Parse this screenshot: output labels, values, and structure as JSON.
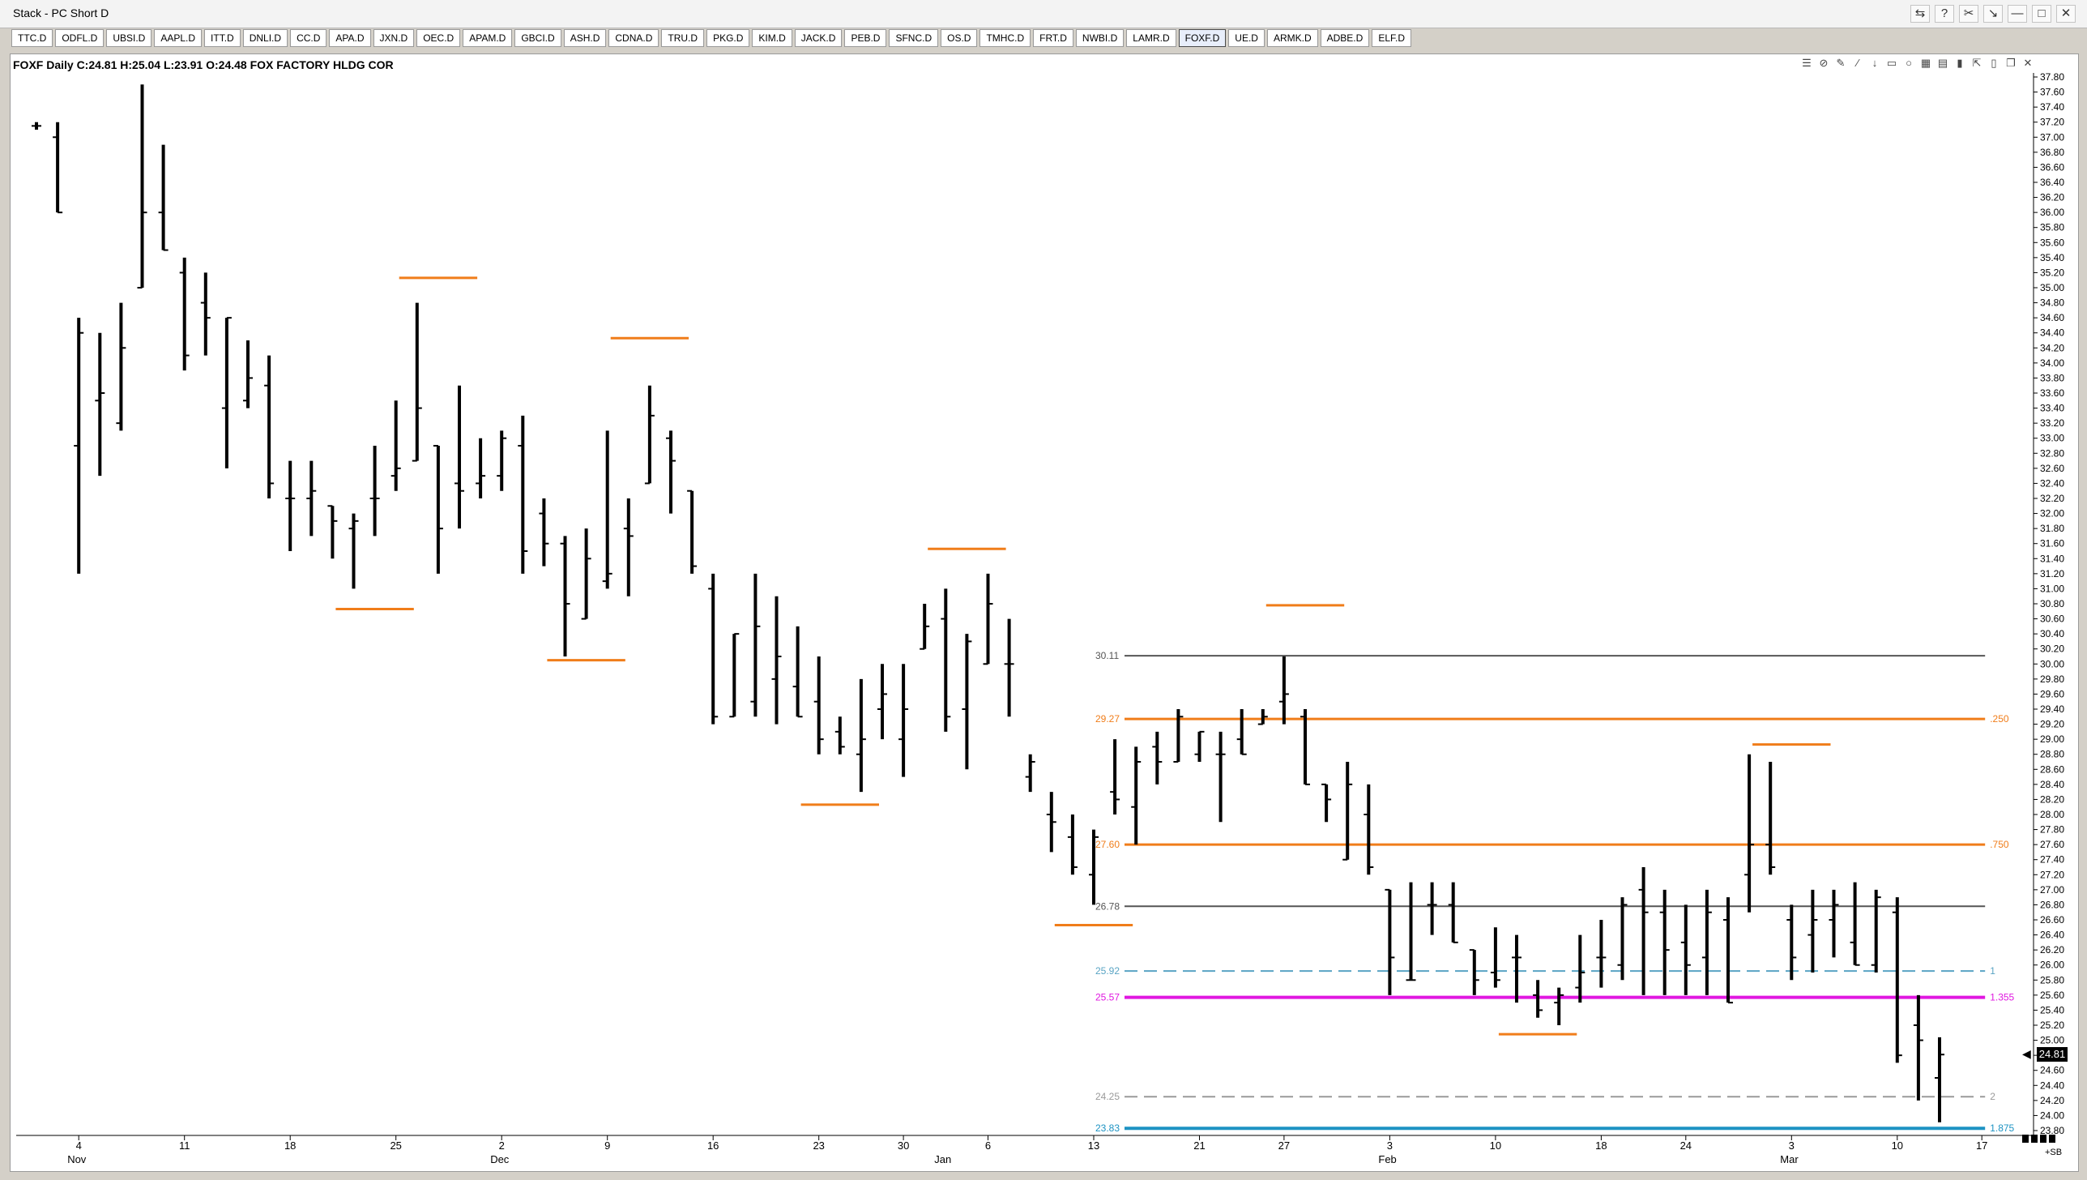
{
  "window": {
    "title": "Stack - PC Short D",
    "controls": [
      "⇆",
      "?",
      "✂",
      "↘",
      "—",
      "□",
      "✕"
    ]
  },
  "tabs": [
    "TTC.D",
    "ODFL.D",
    "UBSI.D",
    "AAPL.D",
    "ITT.D",
    "DNLI.D",
    "CC.D",
    "APA.D",
    "JXN.D",
    "OEC.D",
    "APAM.D",
    "GBCI.D",
    "ASH.D",
    "CDNA.D",
    "TRU.D",
    "PKG.D",
    "KIM.D",
    "JACK.D",
    "PEB.D",
    "SFNC.D",
    "OS.D",
    "TMHC.D",
    "FRT.D",
    "NWBI.D",
    "LAMR.D",
    "FOXF.D",
    "UE.D",
    "ARMK.D",
    "ADBE.D",
    "ELF.D"
  ],
  "active_tab": "FOXF.D",
  "header": {
    "text": "FOXF Daily C:24.81 H:25.04 L:23.91 O:24.48 FOX FACTORY HLDG COR"
  },
  "toolbar_icons": [
    "layers-icon",
    "stop-icon",
    "pencil-icon",
    "fib-icon",
    "down-arrow-icon",
    "highlight-icon",
    "circle-icon",
    "grid-icon",
    "table-icon",
    "trash-icon",
    "expand-icon",
    "lock-icon",
    "copy-icon",
    "close-icon"
  ],
  "toolbar_glyphs": [
    "☰",
    "⊘",
    "✎",
    "⁄",
    "↓",
    "▭",
    "○",
    "▦",
    "▤",
    "▮",
    "⇱",
    "▯",
    "❐",
    "✕"
  ],
  "price_box": "24.81",
  "sb_label": "+SB",
  "chart_data": {
    "type": "ohlc",
    "symbol": "FOXF",
    "ylim": [
      23.8,
      37.8
    ],
    "y_ticks": [
      "37.80",
      "37.60",
      "37.40",
      "37.20",
      "37.00",
      "36.80",
      "36.60",
      "36.40",
      "36.20",
      "36.00",
      "35.80",
      "35.60",
      "35.40",
      "35.20",
      "35.00",
      "34.80",
      "34.60",
      "34.40",
      "34.20",
      "34.00",
      "33.80",
      "33.60",
      "33.40",
      "33.20",
      "33.00",
      "32.80",
      "32.60",
      "32.40",
      "32.20",
      "32.00",
      "31.80",
      "31.60",
      "31.40",
      "31.20",
      "31.00",
      "30.80",
      "30.60",
      "30.40",
      "30.20",
      "30.00",
      "29.80",
      "29.60",
      "29.40",
      "29.20",
      "29.00",
      "28.80",
      "28.60",
      "28.40",
      "28.20",
      "28.00",
      "27.80",
      "27.60",
      "27.40",
      "27.20",
      "27.00",
      "26.80",
      "26.60",
      "26.40",
      "26.20",
      "26.00",
      "25.80",
      "25.60",
      "25.40",
      "25.20",
      "25.00",
      "24.80",
      "24.60",
      "24.40",
      "24.20",
      "24.00",
      "23.80"
    ],
    "x_labels": [
      {
        "i": 2,
        "label": "4"
      },
      {
        "i": 7,
        "label": "11"
      },
      {
        "i": 12,
        "label": "18"
      },
      {
        "i": 17,
        "label": "25"
      },
      {
        "i": 22,
        "label": "2"
      },
      {
        "i": 27,
        "label": "9"
      },
      {
        "i": 32,
        "label": "16"
      },
      {
        "i": 37,
        "label": "23"
      },
      {
        "i": 41,
        "label": "30"
      },
      {
        "i": 45,
        "label": "6"
      },
      {
        "i": 50,
        "label": "13"
      },
      {
        "i": 55,
        "label": "21"
      },
      {
        "i": 59,
        "label": "27"
      },
      {
        "i": 64,
        "label": "3"
      },
      {
        "i": 69,
        "label": "10"
      },
      {
        "i": 74,
        "label": "18"
      },
      {
        "i": 78,
        "label": "24"
      },
      {
        "i": 83,
        "label": "3"
      },
      {
        "i": 88,
        "label": "10"
      },
      {
        "i": 92,
        "label": "17"
      }
    ],
    "month_labels": [
      {
        "i": 2,
        "label": "Nov"
      },
      {
        "i": 22,
        "label": "Dec"
      },
      {
        "i": 43,
        "label": "Jan"
      },
      {
        "i": 64,
        "label": "Feb"
      },
      {
        "i": 83,
        "label": "Mar"
      }
    ],
    "bars": [
      [
        37.15,
        37.2,
        37.1,
        37.15
      ],
      [
        37.0,
        37.2,
        36.0,
        36.0
      ],
      [
        32.9,
        34.6,
        31.2,
        34.4
      ],
      [
        33.5,
        34.4,
        32.5,
        33.6
      ],
      [
        33.2,
        34.8,
        33.1,
        34.2
      ],
      [
        35.0,
        37.7,
        35.2,
        36.0
      ],
      [
        36.0,
        36.9,
        35.5,
        35.5
      ],
      [
        35.2,
        35.4,
        33.9,
        34.1
      ],
      [
        34.8,
        35.2,
        34.1,
        34.6
      ],
      [
        33.4,
        34.6,
        32.6,
        34.6
      ],
      [
        33.5,
        34.3,
        33.4,
        33.8
      ],
      [
        33.7,
        34.1,
        32.2,
        32.4
      ],
      [
        32.2,
        32.7,
        31.5,
        32.2
      ],
      [
        32.2,
        32.7,
        31.7,
        32.3
      ],
      [
        32.1,
        32.1,
        31.4,
        31.9
      ],
      [
        31.8,
        32.0,
        31.0,
        31.9
      ],
      [
        32.2,
        32.9,
        31.7,
        32.2
      ],
      [
        32.5,
        33.5,
        32.3,
        32.6
      ],
      [
        32.7,
        34.8,
        32.7,
        33.4
      ],
      [
        32.9,
        32.9,
        31.2,
        31.8
      ],
      [
        32.4,
        33.7,
        31.8,
        32.3
      ],
      [
        32.4,
        33.0,
        32.2,
        32.5
      ],
      [
        32.5,
        33.1,
        32.3,
        33.0
      ],
      [
        32.9,
        33.3,
        31.2,
        31.5
      ],
      [
        32.0,
        32.2,
        31.3,
        31.6
      ],
      [
        31.6,
        31.7,
        30.1,
        30.8
      ],
      [
        30.6,
        31.8,
        30.6,
        31.4
      ],
      [
        31.1,
        33.1,
        31.0,
        31.2
      ],
      [
        31.8,
        32.2,
        30.9,
        31.7
      ],
      [
        32.4,
        33.7,
        32.6,
        33.3
      ],
      [
        33.0,
        33.1,
        32.0,
        32.7
      ],
      [
        32.3,
        32.2,
        31.2,
        31.3
      ],
      [
        31.0,
        31.2,
        29.2,
        29.3
      ],
      [
        29.3,
        30.4,
        29.5,
        30.4
      ],
      [
        29.5,
        31.2,
        29.3,
        30.5
      ],
      [
        29.8,
        30.9,
        29.2,
        30.1
      ],
      [
        29.7,
        30.5,
        29.3,
        29.3
      ],
      [
        29.5,
        30.1,
        28.8,
        29.0
      ],
      [
        29.1,
        29.3,
        28.8,
        28.9
      ],
      [
        28.8,
        29.8,
        28.3,
        29.0
      ],
      [
        29.4,
        30.0,
        29.0,
        29.6
      ],
      [
        29.0,
        30.0,
        28.5,
        29.4
      ],
      [
        30.2,
        30.8,
        30.2,
        30.5
      ],
      [
        30.6,
        31.0,
        29.1,
        29.3
      ],
      [
        29.4,
        30.4,
        28.6,
        30.3
      ],
      [
        30.0,
        31.2,
        30.0,
        30.8
      ],
      [
        30.0,
        30.6,
        29.3,
        30.0
      ],
      [
        28.5,
        28.8,
        28.3,
        28.7
      ],
      [
        28.0,
        28.3,
        27.5,
        27.9
      ],
      [
        27.7,
        28.0,
        27.2,
        27.3
      ],
      [
        27.2,
        27.8,
        26.8,
        27.7
      ],
      [
        28.3,
        29.0,
        28.0,
        28.2
      ],
      [
        28.1,
        28.9,
        27.6,
        28.7
      ],
      [
        28.9,
        29.1,
        28.4,
        28.7
      ],
      [
        28.7,
        29.4,
        28.7,
        29.3
      ],
      [
        28.8,
        29.1,
        28.7,
        29.1
      ],
      [
        28.8,
        29.1,
        27.9,
        28.8
      ],
      [
        29.0,
        29.4,
        28.8,
        28.8
      ],
      [
        29.2,
        29.4,
        29.2,
        29.3
      ],
      [
        29.5,
        30.1,
        29.2,
        29.6
      ],
      [
        29.3,
        29.4,
        28.4,
        28.4
      ],
      [
        28.4,
        28.4,
        27.9,
        28.2
      ],
      [
        27.4,
        28.7,
        27.9,
        28.4
      ],
      [
        28.0,
        28.4,
        27.2,
        27.3
      ],
      [
        27.0,
        26.9,
        25.6,
        26.1
      ],
      [
        25.8,
        27.1,
        25.8,
        25.8
      ],
      [
        26.8,
        27.1,
        26.4,
        26.8
      ],
      [
        26.8,
        27.1,
        26.3,
        26.3
      ],
      [
        26.2,
        26.2,
        25.6,
        25.8
      ],
      [
        25.9,
        26.5,
        25.7,
        25.8
      ],
      [
        26.1,
        26.4,
        25.5,
        26.1
      ],
      [
        25.6,
        25.8,
        25.3,
        25.4
      ],
      [
        25.5,
        25.7,
        25.2,
        25.6
      ],
      [
        25.7,
        26.4,
        25.5,
        25.9
      ],
      [
        26.1,
        26.6,
        25.7,
        26.1
      ],
      [
        26.0,
        26.9,
        25.8,
        26.8
      ],
      [
        27.0,
        27.3,
        25.6,
        26.7
      ],
      [
        26.7,
        27.0,
        25.6,
        26.2
      ],
      [
        26.3,
        26.8,
        25.6,
        26.0
      ],
      [
        26.1,
        27.0,
        25.6,
        26.7
      ],
      [
        26.6,
        26.9,
        25.5,
        25.5
      ],
      [
        27.2,
        28.8,
        26.7,
        27.6
      ],
      [
        27.6,
        28.7,
        27.2,
        27.3
      ],
      [
        26.6,
        26.8,
        25.8,
        26.1
      ],
      [
        26.4,
        27.0,
        25.9,
        26.6
      ],
      [
        26.6,
        27.0,
        26.1,
        26.8
      ],
      [
        26.3,
        27.1,
        26.0,
        26.0
      ],
      [
        26.0,
        27.0,
        25.9,
        26.9
      ],
      [
        26.7,
        26.9,
        24.7,
        24.8
      ],
      [
        25.2,
        25.6,
        24.2,
        25.0
      ],
      [
        24.5,
        25.04,
        23.91,
        24.81
      ]
    ],
    "horizontal_lines": [
      {
        "value": 30.11,
        "label": "30.11",
        "color": "#555555",
        "style": "solid",
        "width": 2,
        "x_start": 50,
        "x_end": 92,
        "right_label": ""
      },
      {
        "value": 29.27,
        "label": "29.27",
        "color": "#f07d1a",
        "style": "solid",
        "width": 3,
        "x_start": 50,
        "x_end": 92,
        "right_label": ".250"
      },
      {
        "value": 27.6,
        "label": "27.60",
        "color": "#f07d1a",
        "style": "solid",
        "width": 3,
        "x_start": 50,
        "x_end": 92,
        "right_label": ".750"
      },
      {
        "value": 26.78,
        "label": "26.78",
        "color": "#555555",
        "style": "solid",
        "width": 2,
        "x_start": 50,
        "x_end": 92,
        "right_label": ""
      },
      {
        "value": 25.92,
        "label": "25.92",
        "color": "#59a4c4",
        "style": "dashed",
        "width": 2,
        "x_start": 50,
        "x_end": 92,
        "right_label": "1"
      },
      {
        "value": 25.57,
        "label": "25.57",
        "color": "#e018e0",
        "style": "solid",
        "width": 4,
        "x_start": 50,
        "x_end": 92,
        "right_label": "1.355"
      },
      {
        "value": 24.25,
        "label": "24.25",
        "color": "#9a9a9a",
        "style": "dashed",
        "width": 2,
        "x_start": 50,
        "x_end": 92,
        "right_label": "2"
      },
      {
        "value": 23.83,
        "label": "23.83",
        "color": "#1d93c3",
        "style": "solid",
        "width": 4,
        "x_start": 50,
        "x_end": 92,
        "right_label": "1.875"
      }
    ],
    "swing_markers": [
      {
        "value": 35.13,
        "i0": 17,
        "i1": 21
      },
      {
        "value": 30.73,
        "i0": 14,
        "i1": 18
      },
      {
        "value": 30.05,
        "i0": 24,
        "i1": 28
      },
      {
        "value": 34.33,
        "i0": 27,
        "i1": 31
      },
      {
        "value": 28.13,
        "i0": 36,
        "i1": 40
      },
      {
        "value": 31.53,
        "i0": 42,
        "i1": 46
      },
      {
        "value": 26.53,
        "i0": 48,
        "i1": 52
      },
      {
        "value": 30.78,
        "i0": 58,
        "i1": 62
      },
      {
        "value": 25.08,
        "i0": 69,
        "i1": 73
      },
      {
        "value": 28.93,
        "i0": 81,
        "i1": 85
      }
    ]
  }
}
